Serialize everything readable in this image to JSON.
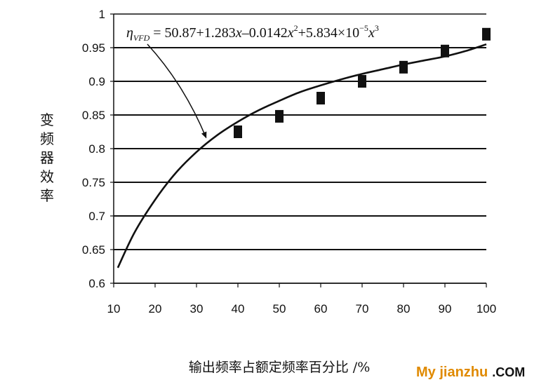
{
  "chart_data": {
    "type": "line",
    "title": "",
    "xlabel": "输出频率占额定频率百分比 /%",
    "ylabel": "变频器效率",
    "xlim": [
      10,
      100
    ],
    "ylim": [
      0.6,
      1.0
    ],
    "x_ticks": [
      "10",
      "20",
      "30",
      "40",
      "50",
      "60",
      "70",
      "80",
      "90",
      "100"
    ],
    "y_ticks": [
      "0.6",
      "0.65",
      "0.7",
      "0.75",
      "0.8",
      "0.85",
      "0.9",
      "0.95",
      "1"
    ],
    "grid": "horizontal",
    "series": [
      {
        "kind": "markers",
        "marker": "square",
        "x": [
          40,
          50,
          60,
          70,
          80,
          90,
          100
        ],
        "y": [
          0.825,
          0.848,
          0.875,
          0.9,
          0.921,
          0.945,
          0.97
        ]
      },
      {
        "kind": "fitted-curve",
        "x": [
          11,
          15,
          20,
          25,
          30,
          35,
          40,
          45,
          50,
          55,
          60,
          65,
          70,
          75,
          80,
          85,
          90,
          95,
          100
        ],
        "y": [
          0.623,
          0.675,
          0.724,
          0.764,
          0.795,
          0.82,
          0.84,
          0.857,
          0.871,
          0.884,
          0.894,
          0.903,
          0.911,
          0.918,
          0.925,
          0.931,
          0.937,
          0.945,
          0.955
        ]
      }
    ],
    "annotation": {
      "eta": "η",
      "subscript": "VFD",
      "equals": " = 50.87+1.283",
      "x1": "x",
      "minus": "–0.0142",
      "x2": "x",
      "exp2": "2",
      "plus": "+5.834×10",
      "exp_neg5": "−5",
      "x3": "x",
      "exp3": "3",
      "arrow_target_x": 33
    }
  },
  "watermark": {
    "prefix": "My jianzhu",
    "suffix": ".COM"
  }
}
